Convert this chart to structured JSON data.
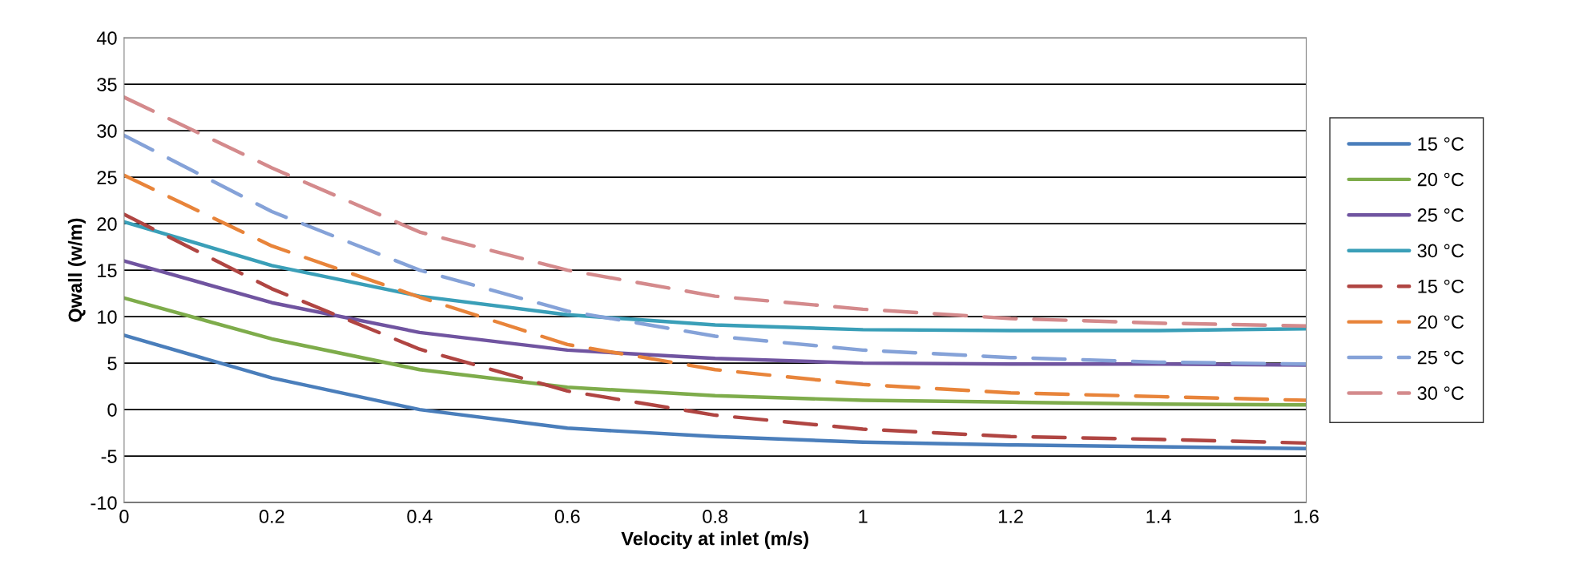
{
  "chart_data": {
    "type": "line",
    "xlabel": "Velocity at inlet (m/s)",
    "ylabel": "Qwall (w/m)",
    "x": [
      0,
      0.2,
      0.4,
      0.6,
      0.8,
      1.0,
      1.2,
      1.4,
      1.6
    ],
    "xlim": [
      0,
      1.6
    ],
    "xticks": [
      0,
      0.2,
      0.4,
      0.6,
      0.8,
      1,
      1.2,
      1.4,
      1.6
    ],
    "ylim": [
      -10,
      40
    ],
    "yticks": [
      -10,
      -5,
      0,
      5,
      10,
      15,
      20,
      25,
      30,
      35,
      40
    ],
    "grid": "y",
    "legend": "right",
    "marker": "none",
    "series": [
      {
        "name": "15 °C",
        "color": "#4a7ebb",
        "line_style": "solid",
        "values": [
          8,
          3.4,
          0,
          -2,
          -2.9,
          -3.5,
          -3.8,
          -4.0,
          -4.2
        ]
      },
      {
        "name": "20 °C",
        "color": "#7eac4b",
        "line_style": "solid",
        "values": [
          12,
          7.6,
          4.3,
          2.4,
          1.5,
          1.0,
          0.8,
          0.6,
          0.5
        ]
      },
      {
        "name": "25 °C",
        "color": "#7054a0",
        "line_style": "solid",
        "values": [
          16,
          11.5,
          8.3,
          6.4,
          5.5,
          5.0,
          4.9,
          4.9,
          4.8
        ]
      },
      {
        "name": "30 °C",
        "color": "#3a9fb8",
        "line_style": "solid",
        "values": [
          20.2,
          15.5,
          12.2,
          10.2,
          9.1,
          8.6,
          8.5,
          8.5,
          8.7
        ]
      },
      {
        "name": "15 °C",
        "color": "#b04542",
        "line_style": "dashed",
        "values": [
          21,
          13,
          6.5,
          2,
          -0.6,
          -2.1,
          -2.9,
          -3.2,
          -3.6
        ]
      },
      {
        "name": "20 °C",
        "color": "#e8843a",
        "line_style": "dashed",
        "values": [
          25.2,
          17.6,
          12.1,
          7,
          4.3,
          2.7,
          1.8,
          1.4,
          1.0
        ]
      },
      {
        "name": "25 °C",
        "color": "#85a2d8",
        "line_style": "dashed",
        "values": [
          29.5,
          21.3,
          15,
          10.6,
          7.9,
          6.4,
          5.6,
          5.1,
          4.9
        ]
      },
      {
        "name": "30 °C",
        "color": "#d48a8c",
        "line_style": "dashed",
        "values": [
          33.6,
          26,
          19.1,
          15,
          12.2,
          10.8,
          9.8,
          9.3,
          9.0
        ]
      }
    ]
  }
}
